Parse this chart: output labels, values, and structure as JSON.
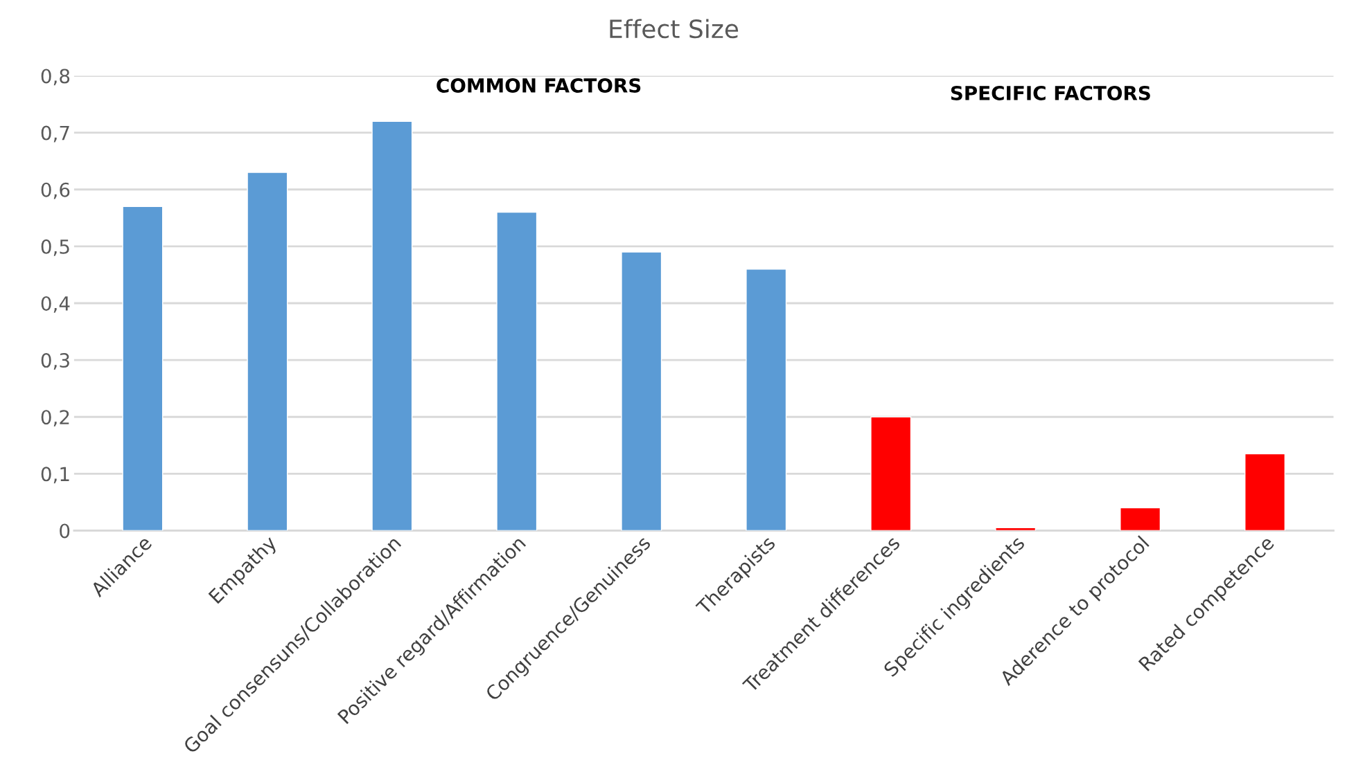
{
  "chart_data": {
    "type": "bar",
    "title": "Effect Size",
    "categories": [
      "Alliance",
      "Empathy",
      "Goal consensuns/Collaboration",
      "Positive regard/Affirmation",
      "Congruence/Genuiness",
      "Therapists",
      "Treatment differences",
      "Specific ingredients",
      "Aderence to protocol",
      "Rated competence"
    ],
    "values": [
      0.57,
      0.63,
      0.72,
      0.56,
      0.49,
      0.46,
      0.2,
      0.005,
      0.04,
      0.135
    ],
    "colors": [
      "#5b9bd5",
      "#5b9bd5",
      "#5b9bd5",
      "#5b9bd5",
      "#5b9bd5",
      "#5b9bd5",
      "#ff0000",
      "#ff0000",
      "#ff0000",
      "#ff0000"
    ],
    "ylim": [
      0,
      0.8
    ],
    "yticks": [
      0,
      {
        "value": 0.1,
        "label": "0,1"
      },
      {
        "value": 0.2,
        "label": "0,2"
      },
      {
        "value": 0.3,
        "label": "0,3"
      },
      {
        "value": 0.4,
        "label": "0,4"
      },
      {
        "value": 0.5,
        "label": "0,5"
      },
      {
        "value": 0.6,
        "label": "0,6"
      },
      {
        "value": 0.7,
        "label": "0,7"
      },
      {
        "value": 0.8,
        "label": "0,8"
      }
    ],
    "grid": "y",
    "legend": false,
    "annotations": [
      "COMMON FACTORS",
      "SPECIFIC FACTORS"
    ]
  }
}
